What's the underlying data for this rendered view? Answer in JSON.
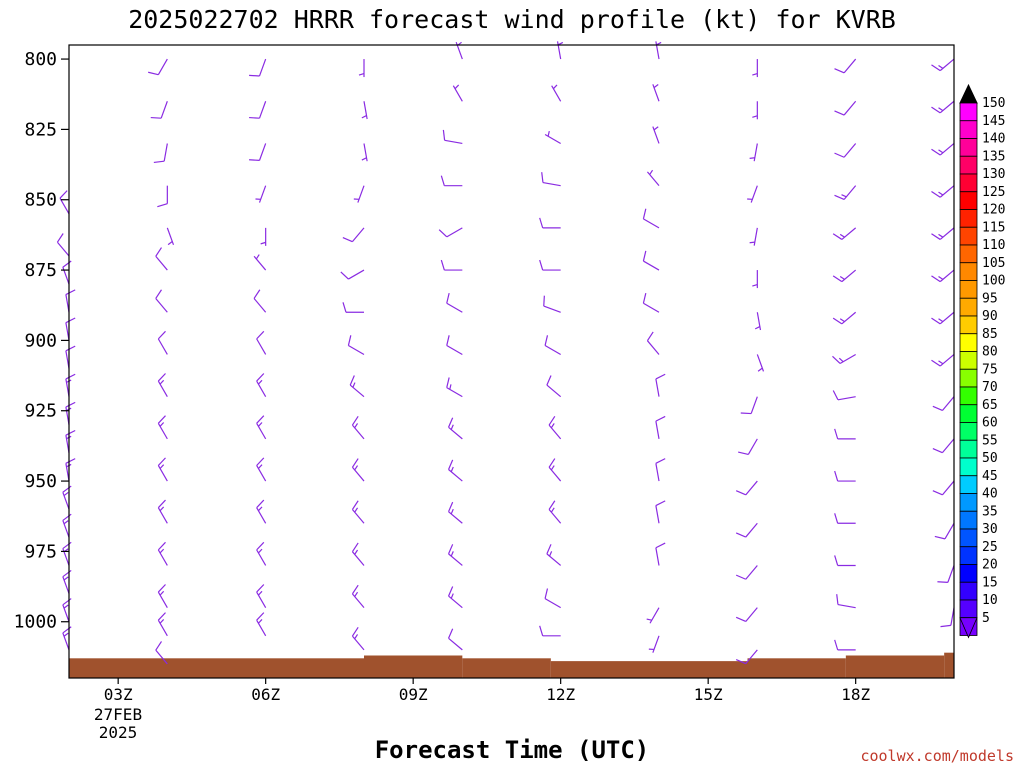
{
  "chart_data": {
    "type": "wind-barb-profile",
    "title": "2025022702 HRRR forecast wind profile (kt) for KVRB",
    "xlabel": "Forecast Time (UTC)",
    "credit": "coolwx.com/models",
    "y_ticks": [
      "800",
      "825",
      "850",
      "875",
      "900",
      "925",
      "950",
      "975",
      "1000"
    ],
    "x_ticks": [
      {
        "label": "03Z",
        "hour": 3
      },
      {
        "label": "06Z",
        "hour": 6
      },
      {
        "label": "09Z",
        "hour": 9
      },
      {
        "label": "12Z",
        "hour": 12
      },
      {
        "label": "15Z",
        "hour": 15
      },
      {
        "label": "18Z",
        "hour": 18
      }
    ],
    "date_label": [
      "27FEB",
      "2025"
    ],
    "x_range_hours": [
      2,
      20
    ],
    "y_range_hpa": [
      795,
      1020
    ],
    "barb_color": "#8a2be2",
    "terrain_color": "#a0522d",
    "colorbar": {
      "labels": [
        "150",
        "145",
        "140",
        "135",
        "130",
        "125",
        "120",
        "115",
        "110",
        "105",
        "100",
        "95",
        "90",
        "85",
        "80",
        "75",
        "70",
        "65",
        "60",
        "55",
        "50",
        "45",
        "40",
        "35",
        "30",
        "25",
        "20",
        "15",
        "10",
        "5"
      ],
      "colors": [
        "#ff00ff",
        "#ff00cc",
        "#ff0099",
        "#ff0066",
        "#ff0033",
        "#ff0000",
        "#ff2200",
        "#ff4400",
        "#ff6600",
        "#ff8800",
        "#ff9900",
        "#ffaa00",
        "#ffcc00",
        "#ffff00",
        "#ccff00",
        "#88ff00",
        "#33ff00",
        "#00ff33",
        "#00ff66",
        "#00ff99",
        "#00ffcc",
        "#00ccff",
        "#0099ff",
        "#0077ff",
        "#0055ff",
        "#0033ff",
        "#0000ff",
        "#3300ff",
        "#5500ff",
        "#7700ff"
      ]
    },
    "series": [
      {
        "hour": 2,
        "levels": [
          {
            "p": 855,
            "dir": 330,
            "spd": 10
          },
          {
            "p": 870,
            "dir": 320,
            "spd": 10
          },
          {
            "p": 880,
            "dir": 340,
            "spd": 10
          },
          {
            "p": 890,
            "dir": 350,
            "spd": 10
          },
          {
            "p": 900,
            "dir": 350,
            "spd": 10
          },
          {
            "p": 910,
            "dir": 350,
            "spd": 10
          },
          {
            "p": 920,
            "dir": 350,
            "spd": 15
          },
          {
            "p": 930,
            "dir": 350,
            "spd": 15
          },
          {
            "p": 940,
            "dir": 350,
            "spd": 15
          },
          {
            "p": 950,
            "dir": 350,
            "spd": 15
          },
          {
            "p": 960,
            "dir": 340,
            "spd": 15
          },
          {
            "p": 970,
            "dir": 340,
            "spd": 15
          },
          {
            "p": 980,
            "dir": 340,
            "spd": 15
          },
          {
            "p": 990,
            "dir": 340,
            "spd": 15
          },
          {
            "p": 1000,
            "dir": 340,
            "spd": 15
          },
          {
            "p": 1010,
            "dir": 340,
            "spd": 15
          }
        ]
      },
      {
        "hour": 4,
        "levels": [
          {
            "p": 800,
            "dir": 210,
            "spd": 10
          },
          {
            "p": 815,
            "dir": 200,
            "spd": 10
          },
          {
            "p": 830,
            "dir": 190,
            "spd": 10
          },
          {
            "p": 845,
            "dir": 180,
            "spd": 10
          },
          {
            "p": 860,
            "dir": 160,
            "spd": 5
          },
          {
            "p": 875,
            "dir": 320,
            "spd": 10
          },
          {
            "p": 890,
            "dir": 320,
            "spd": 10
          },
          {
            "p": 905,
            "dir": 330,
            "spd": 10
          },
          {
            "p": 920,
            "dir": 330,
            "spd": 15
          },
          {
            "p": 935,
            "dir": 330,
            "spd": 15
          },
          {
            "p": 950,
            "dir": 330,
            "spd": 15
          },
          {
            "p": 965,
            "dir": 330,
            "spd": 15
          },
          {
            "p": 980,
            "dir": 330,
            "spd": 15
          },
          {
            "p": 995,
            "dir": 330,
            "spd": 15
          },
          {
            "p": 1005,
            "dir": 330,
            "spd": 15
          },
          {
            "p": 1015,
            "dir": 320,
            "spd": 10
          }
        ]
      },
      {
        "hour": 6,
        "levels": [
          {
            "p": 800,
            "dir": 200,
            "spd": 10
          },
          {
            "p": 815,
            "dir": 200,
            "spd": 10
          },
          {
            "p": 830,
            "dir": 200,
            "spd": 10
          },
          {
            "p": 845,
            "dir": 200,
            "spd": 5
          },
          {
            "p": 860,
            "dir": 180,
            "spd": 5
          },
          {
            "p": 875,
            "dir": 320,
            "spd": 5
          },
          {
            "p": 890,
            "dir": 320,
            "spd": 10
          },
          {
            "p": 905,
            "dir": 330,
            "spd": 10
          },
          {
            "p": 920,
            "dir": 330,
            "spd": 15
          },
          {
            "p": 935,
            "dir": 330,
            "spd": 15
          },
          {
            "p": 950,
            "dir": 330,
            "spd": 15
          },
          {
            "p": 965,
            "dir": 330,
            "spd": 15
          },
          {
            "p": 980,
            "dir": 330,
            "spd": 15
          },
          {
            "p": 995,
            "dir": 330,
            "spd": 15
          },
          {
            "p": 1005,
            "dir": 330,
            "spd": 15
          }
        ]
      },
      {
        "hour": 8,
        "levels": [
          {
            "p": 800,
            "dir": 180,
            "spd": 5
          },
          {
            "p": 815,
            "dir": 170,
            "spd": 5
          },
          {
            "p": 830,
            "dir": 170,
            "spd": 5
          },
          {
            "p": 845,
            "dir": 200,
            "spd": 5
          },
          {
            "p": 860,
            "dir": 220,
            "spd": 10
          },
          {
            "p": 875,
            "dir": 240,
            "spd": 10
          },
          {
            "p": 890,
            "dir": 270,
            "spd": 10
          },
          {
            "p": 905,
            "dir": 300,
            "spd": 10
          },
          {
            "p": 920,
            "dir": 310,
            "spd": 15
          },
          {
            "p": 935,
            "dir": 320,
            "spd": 15
          },
          {
            "p": 950,
            "dir": 320,
            "spd": 15
          },
          {
            "p": 965,
            "dir": 320,
            "spd": 15
          },
          {
            "p": 980,
            "dir": 320,
            "spd": 15
          },
          {
            "p": 995,
            "dir": 320,
            "spd": 15
          },
          {
            "p": 1010,
            "dir": 320,
            "spd": 15
          }
        ]
      },
      {
        "hour": 10,
        "levels": [
          {
            "p": 800,
            "dir": 340,
            "spd": 5
          },
          {
            "p": 815,
            "dir": 330,
            "spd": 5
          },
          {
            "p": 830,
            "dir": 280,
            "spd": 10
          },
          {
            "p": 845,
            "dir": 270,
            "spd": 10
          },
          {
            "p": 860,
            "dir": 240,
            "spd": 10
          },
          {
            "p": 875,
            "dir": 270,
            "spd": 10
          },
          {
            "p": 890,
            "dir": 300,
            "spd": 10
          },
          {
            "p": 905,
            "dir": 300,
            "spd": 10
          },
          {
            "p": 920,
            "dir": 300,
            "spd": 15
          },
          {
            "p": 935,
            "dir": 310,
            "spd": 15
          },
          {
            "p": 950,
            "dir": 310,
            "spd": 15
          },
          {
            "p": 965,
            "dir": 310,
            "spd": 15
          },
          {
            "p": 980,
            "dir": 310,
            "spd": 15
          },
          {
            "p": 995,
            "dir": 310,
            "spd": 15
          },
          {
            "p": 1010,
            "dir": 310,
            "spd": 10
          }
        ]
      },
      {
        "hour": 12,
        "levels": [
          {
            "p": 800,
            "dir": 350,
            "spd": 5
          },
          {
            "p": 815,
            "dir": 330,
            "spd": 5
          },
          {
            "p": 830,
            "dir": 300,
            "spd": 5
          },
          {
            "p": 845,
            "dir": 280,
            "spd": 10
          },
          {
            "p": 860,
            "dir": 270,
            "spd": 10
          },
          {
            "p": 875,
            "dir": 270,
            "spd": 10
          },
          {
            "p": 890,
            "dir": 290,
            "spd": 10
          },
          {
            "p": 905,
            "dir": 300,
            "spd": 10
          },
          {
            "p": 920,
            "dir": 310,
            "spd": 10
          },
          {
            "p": 935,
            "dir": 320,
            "spd": 15
          },
          {
            "p": 950,
            "dir": 320,
            "spd": 15
          },
          {
            "p": 965,
            "dir": 320,
            "spd": 15
          },
          {
            "p": 980,
            "dir": 310,
            "spd": 15
          },
          {
            "p": 995,
            "dir": 300,
            "spd": 10
          },
          {
            "p": 1005,
            "dir": 270,
            "spd": 10
          }
        ]
      },
      {
        "hour": 14,
        "levels": [
          {
            "p": 800,
            "dir": 350,
            "spd": 5
          },
          {
            "p": 815,
            "dir": 340,
            "spd": 5
          },
          {
            "p": 830,
            "dir": 340,
            "spd": 5
          },
          {
            "p": 845,
            "dir": 320,
            "spd": 5
          },
          {
            "p": 860,
            "dir": 300,
            "spd": 10
          },
          {
            "p": 875,
            "dir": 300,
            "spd": 10
          },
          {
            "p": 890,
            "dir": 300,
            "spd": 10
          },
          {
            "p": 905,
            "dir": 320,
            "spd": 10
          },
          {
            "p": 920,
            "dir": 350,
            "spd": 10
          },
          {
            "p": 935,
            "dir": 350,
            "spd": 10
          },
          {
            "p": 950,
            "dir": 350,
            "spd": 10
          },
          {
            "p": 965,
            "dir": 350,
            "spd": 10
          },
          {
            "p": 980,
            "dir": 350,
            "spd": 10
          },
          {
            "p": 995,
            "dir": 210,
            "spd": 5
          },
          {
            "p": 1005,
            "dir": 200,
            "spd": 5
          }
        ]
      },
      {
        "hour": 16,
        "levels": [
          {
            "p": 800,
            "dir": 180,
            "spd": 5
          },
          {
            "p": 815,
            "dir": 180,
            "spd": 5
          },
          {
            "p": 830,
            "dir": 190,
            "spd": 5
          },
          {
            "p": 845,
            "dir": 200,
            "spd": 5
          },
          {
            "p": 860,
            "dir": 190,
            "spd": 5
          },
          {
            "p": 875,
            "dir": 180,
            "spd": 5
          },
          {
            "p": 890,
            "dir": 170,
            "spd": 5
          },
          {
            "p": 905,
            "dir": 160,
            "spd": 5
          },
          {
            "p": 920,
            "dir": 200,
            "spd": 10
          },
          {
            "p": 935,
            "dir": 210,
            "spd": 10
          },
          {
            "p": 950,
            "dir": 220,
            "spd": 10
          },
          {
            "p": 965,
            "dir": 220,
            "spd": 10
          },
          {
            "p": 980,
            "dir": 220,
            "spd": 10
          },
          {
            "p": 995,
            "dir": 220,
            "spd": 10
          },
          {
            "p": 1010,
            "dir": 220,
            "spd": 10
          }
        ]
      },
      {
        "hour": 18,
        "levels": [
          {
            "p": 800,
            "dir": 220,
            "spd": 10
          },
          {
            "p": 815,
            "dir": 220,
            "spd": 10
          },
          {
            "p": 830,
            "dir": 220,
            "spd": 10
          },
          {
            "p": 845,
            "dir": 220,
            "spd": 15
          },
          {
            "p": 860,
            "dir": 230,
            "spd": 15
          },
          {
            "p": 875,
            "dir": 230,
            "spd": 15
          },
          {
            "p": 890,
            "dir": 230,
            "spd": 15
          },
          {
            "p": 905,
            "dir": 240,
            "spd": 15
          },
          {
            "p": 920,
            "dir": 260,
            "spd": 10
          },
          {
            "p": 935,
            "dir": 270,
            "spd": 10
          },
          {
            "p": 950,
            "dir": 270,
            "spd": 10
          },
          {
            "p": 965,
            "dir": 270,
            "spd": 10
          },
          {
            "p": 980,
            "dir": 270,
            "spd": 10
          },
          {
            "p": 995,
            "dir": 280,
            "spd": 10
          },
          {
            "p": 1010,
            "dir": 270,
            "spd": 10
          }
        ]
      },
      {
        "hour": 20,
        "levels": [
          {
            "p": 800,
            "dir": 230,
            "spd": 15
          },
          {
            "p": 815,
            "dir": 230,
            "spd": 15
          },
          {
            "p": 830,
            "dir": 230,
            "spd": 15
          },
          {
            "p": 845,
            "dir": 230,
            "spd": 15
          },
          {
            "p": 860,
            "dir": 230,
            "spd": 15
          },
          {
            "p": 875,
            "dir": 230,
            "spd": 15
          },
          {
            "p": 890,
            "dir": 230,
            "spd": 15
          },
          {
            "p": 905,
            "dir": 230,
            "spd": 15
          },
          {
            "p": 920,
            "dir": 220,
            "spd": 10
          },
          {
            "p": 935,
            "dir": 220,
            "spd": 10
          },
          {
            "p": 950,
            "dir": 220,
            "spd": 10
          },
          {
            "p": 965,
            "dir": 210,
            "spd": 10
          },
          {
            "p": 980,
            "dir": 200,
            "spd": 10
          },
          {
            "p": 995,
            "dir": 190,
            "spd": 10
          }
        ]
      }
    ],
    "terrain": [
      {
        "x0": 2.0,
        "x1": 8.0,
        "p": 1013
      },
      {
        "x0": 8.0,
        "x1": 10.0,
        "p": 1012
      },
      {
        "x0": 10.0,
        "x1": 11.8,
        "p": 1013
      },
      {
        "x0": 11.8,
        "x1": 15.8,
        "p": 1014
      },
      {
        "x0": 15.8,
        "x1": 17.8,
        "p": 1013
      },
      {
        "x0": 17.8,
        "x1": 19.8,
        "p": 1012
      },
      {
        "x0": 19.8,
        "x1": 20.0,
        "p": 1011
      }
    ]
  }
}
